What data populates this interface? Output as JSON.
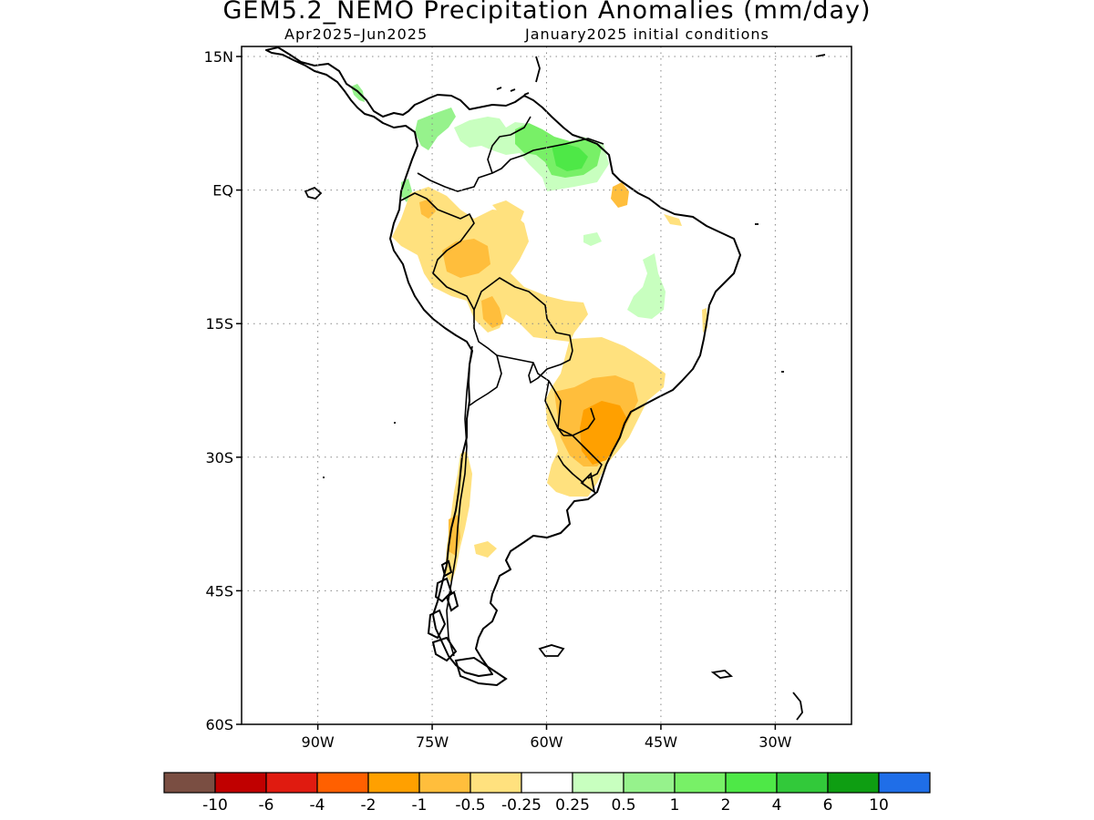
{
  "title": "GEM5.2_NEMO Precipitation Anomalies (mm/day)",
  "subtitle_left": "Apr2025–Jun2025",
  "subtitle_right": "January2025 initial conditions",
  "lat_ticks": [
    {
      "label": "15N",
      "lat": 15
    },
    {
      "label": "EQ",
      "lat": 0
    },
    {
      "label": "15S",
      "lat": -15
    },
    {
      "label": "30S",
      "lat": -30
    },
    {
      "label": "45S",
      "lat": -45
    },
    {
      "label": "60S",
      "lat": -60
    }
  ],
  "lon_ticks": [
    {
      "label": "90W",
      "lon": -90
    },
    {
      "label": "75W",
      "lon": -75
    },
    {
      "label": "60W",
      "lon": -60
    },
    {
      "label": "45W",
      "lon": -45
    },
    {
      "label": "30W",
      "lon": -30
    }
  ],
  "extent": {
    "lon_min": -100,
    "lon_max": -20,
    "lat_min": -60,
    "lat_max": 16
  },
  "colorbar": {
    "colors": [
      "#7a4e42",
      "#c00000",
      "#e01b10",
      "#ff6000",
      "#ffa000",
      "#ffbe3c",
      "#ffe17e",
      "#ffffff",
      "#c8ffbf",
      "#96f28c",
      "#78f067",
      "#4ee847",
      "#32c93a",
      "#0e9e12",
      "#1f6ee8"
    ],
    "labels": [
      "-10",
      "-6",
      "-4",
      "-2",
      "-1",
      "-0.5",
      "-0.25",
      "0.25",
      "0.5",
      "1",
      "2",
      "4",
      "6",
      "10"
    ]
  },
  "legend_colors": {
    "wet_light": "#c8ffbf",
    "wet_medium": "#96f28c",
    "wet_strong": "#78f067",
    "wet_heavy": "#4ee847",
    "dry_light": "#ffe17e",
    "dry_medium": "#ffbe3c",
    "dry_strong": "#ffa000"
  }
}
